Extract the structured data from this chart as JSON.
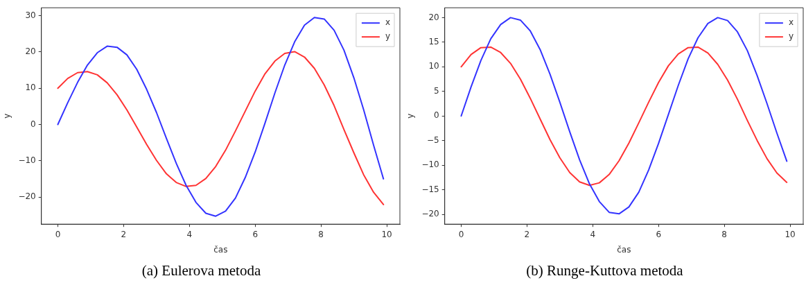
{
  "chart_data": [
    {
      "type": "line",
      "xlabel": "čas",
      "ylabel": "y",
      "annotations": [
        "(a) Eulerova metoda"
      ],
      "legend": "top right",
      "marker": "none",
      "line_style": "solid",
      "xlim": [
        -0.5,
        10.4
      ],
      "ylim": [
        -27.5,
        32.2
      ],
      "xticks": [
        0,
        2,
        4,
        6,
        8,
        10
      ],
      "yticks": [
        -20,
        -10,
        0,
        10,
        20,
        30
      ],
      "x": [
        0,
        0.3,
        0.6,
        0.9,
        1.2,
        1.5,
        1.8,
        2.1,
        2.4,
        2.7,
        3.0,
        3.3,
        3.6,
        3.9,
        4.2,
        4.5,
        4.8,
        5.1,
        5.4,
        5.7,
        6.0,
        6.3,
        6.6,
        6.9,
        7.2,
        7.5,
        7.8,
        8.1,
        8.4,
        8.7,
        9.0,
        9.3,
        9.6,
        9.9
      ],
      "series": [
        {
          "name": "x",
          "color": "#3333ff",
          "values": [
            0,
            6.0,
            11.6,
            16.4,
            19.8,
            21.6,
            21.3,
            19.2,
            15.2,
            9.7,
            3.3,
            -3.8,
            -10.7,
            -16.8,
            -21.5,
            -24.5,
            -25.3,
            -23.9,
            -20.3,
            -14.6,
            -7.6,
            0.4,
            8.7,
            16.4,
            22.8,
            27.4,
            29.5,
            29.1,
            26.0,
            20.5,
            12.9,
            4.0,
            -5.7,
            -15.0
          ]
        },
        {
          "name": "y",
          "color": "#ff3333",
          "values": [
            10,
            12.7,
            14.3,
            14.6,
            13.7,
            11.5,
            8.2,
            4.0,
            -0.7,
            -5.5,
            -9.9,
            -13.6,
            -16.0,
            -17.1,
            -16.8,
            -14.9,
            -11.6,
            -7.1,
            -1.8,
            3.7,
            9.2,
            14.0,
            17.5,
            19.6,
            20.1,
            18.6,
            15.5,
            10.9,
            5.2,
            -1.4,
            -7.8,
            -13.9,
            -18.7,
            -22.1
          ]
        }
      ]
    },
    {
      "type": "line",
      "xlabel": "čas",
      "ylabel": "y",
      "annotations": [
        "(b) Runge-Kuttova metoda"
      ],
      "legend": "top right",
      "marker": "none",
      "line_style": "solid",
      "xlim": [
        -0.5,
        10.4
      ],
      "ylim": [
        -22,
        22
      ],
      "xticks": [
        0,
        2,
        4,
        6,
        8,
        10
      ],
      "yticks": [
        -20,
        -15,
        -10,
        -5,
        0,
        5,
        10,
        15,
        20
      ],
      "x": [
        0,
        0.3,
        0.6,
        0.9,
        1.2,
        1.5,
        1.8,
        2.1,
        2.4,
        2.7,
        3.0,
        3.3,
        3.6,
        3.9,
        4.2,
        4.5,
        4.8,
        5.1,
        5.4,
        5.7,
        6.0,
        6.3,
        6.6,
        6.9,
        7.2,
        7.5,
        7.8,
        8.1,
        8.4,
        8.7,
        9.0,
        9.3,
        9.6,
        9.9
      ],
      "series": [
        {
          "name": "x",
          "color": "#3333ff",
          "values": [
            0,
            5.9,
            11.3,
            15.7,
            18.6,
            20.0,
            19.5,
            17.3,
            13.5,
            8.5,
            2.8,
            -3.2,
            -8.9,
            -13.8,
            -17.4,
            -19.6,
            -19.9,
            -18.5,
            -15.5,
            -11.0,
            -5.6,
            0.3,
            6.2,
            11.6,
            15.9,
            18.8,
            20.0,
            19.4,
            17.1,
            13.3,
            8.2,
            2.5,
            -3.5,
            -9.2
          ]
        },
        {
          "name": "y",
          "color": "#ff3333",
          "values": [
            10,
            12.5,
            13.9,
            14.0,
            12.9,
            10.7,
            7.5,
            3.6,
            -0.6,
            -4.8,
            -8.5,
            -11.5,
            -13.4,
            -14.1,
            -13.6,
            -11.9,
            -9.1,
            -5.5,
            -1.4,
            2.8,
            6.8,
            10.2,
            12.6,
            13.9,
            14.0,
            12.8,
            10.5,
            7.3,
            3.4,
            -0.9,
            -5.0,
            -8.7,
            -11.6,
            -13.5
          ]
        }
      ]
    }
  ]
}
